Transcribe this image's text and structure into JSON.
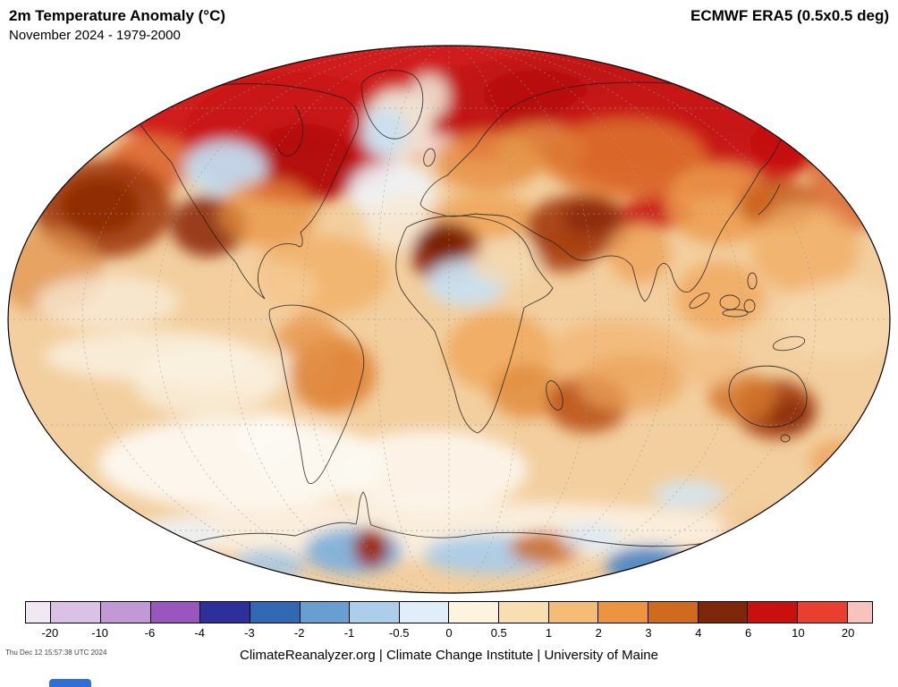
{
  "header": {
    "title": "2m Temperature Anomaly (°C)",
    "subtitle": "November 2024 - 1979-2000",
    "dataset": "ECMWF ERA5 (0.5x0.5 deg)"
  },
  "colorbar": {
    "labels": [
      "-20",
      "-10",
      "-6",
      "-4",
      "-3",
      "-2",
      "-1",
      "-0.5",
      "0",
      "0.5",
      "1",
      "2",
      "3",
      "4",
      "6",
      "10",
      "20"
    ],
    "colors": [
      "#f2e8f4",
      "#dcc1e6",
      "#c299d5",
      "#9956bf",
      "#2f2f9c",
      "#3069b1",
      "#699fd0",
      "#abcfe9",
      "#dfeef8",
      "#fdf4de",
      "#f9dfb0",
      "#f3bc77",
      "#ec9440",
      "#d06a1f",
      "#7e2708",
      "#c8100e",
      "#e8402c",
      "#f8c3bc"
    ]
  },
  "footer": {
    "timestamp": "Thu Dec 12 15:57:38 UTC 2024",
    "credit": "ClimateReanalyzer.org | Climate Change Institute | University of Maine"
  }
}
